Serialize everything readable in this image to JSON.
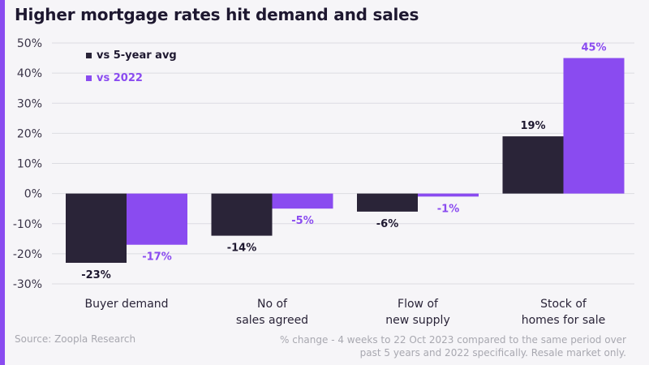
{
  "title": "Higher mortgage rates hit demand and sales",
  "source": "Source: Zoopla Research",
  "footnote": "% change - 4 weeks to 22 Oct 2023 compared to the same period over past 5 years and 2022 specifically. Resale market only.",
  "colors": {
    "accent": "#8a4bf0",
    "dark": "#2a2438",
    "purple": "#8a4bf0",
    "text": "#1e1830",
    "muted": "#a8a8b0"
  },
  "chart_data": {
    "type": "bar",
    "title": "Higher mortgage rates hit demand and sales",
    "categories": [
      [
        "Buyer demand"
      ],
      [
        "No of",
        "sales agreed"
      ],
      [
        "Flow of",
        "new supply"
      ],
      [
        "Stock of",
        "homes for sale"
      ]
    ],
    "series": [
      {
        "name": "vs 5-year avg",
        "color": "#2a2438",
        "values": [
          -23,
          -14,
          -6,
          19
        ],
        "labels": [
          "-23%",
          "-14%",
          "-6%",
          "19%"
        ]
      },
      {
        "name": "vs 2022",
        "color": "#8a4bf0",
        "values": [
          -17,
          -5,
          -1,
          45
        ],
        "labels": [
          "-17%",
          "-5%",
          "-1%",
          "45%"
        ]
      }
    ],
    "yticks": [
      50,
      40,
      30,
      20,
      10,
      0,
      -10,
      -20,
      -30
    ],
    "ytick_labels": [
      "50%",
      "40%",
      "30%",
      "20%",
      "10%",
      "0%",
      "-10%",
      "-20%",
      "-30%"
    ],
    "ylim": [
      -30,
      50
    ],
    "xlabel": "",
    "ylabel": "",
    "grid": true,
    "legend": "top-left"
  }
}
